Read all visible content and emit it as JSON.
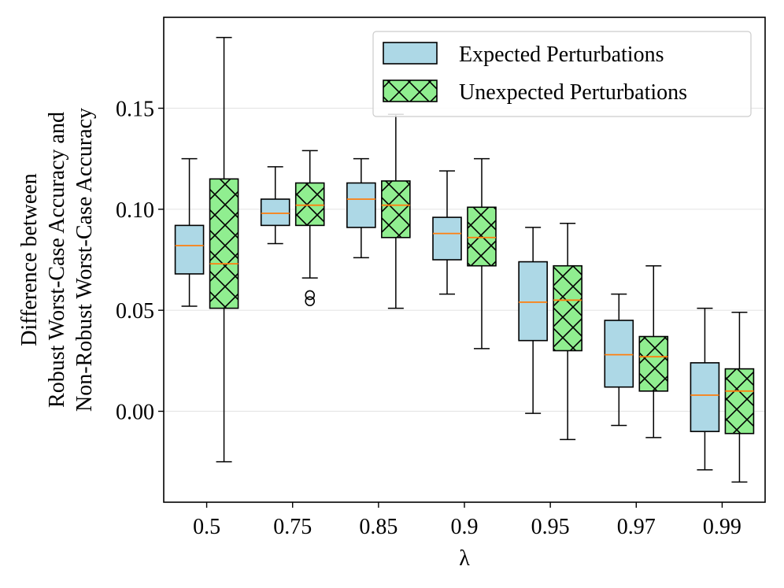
{
  "chart_data": {
    "type": "box",
    "title": "",
    "xlabel": "λ",
    "ylabel_lines": [
      "Difference between",
      "Robust Worst-Case Accuracy and",
      "Non-Robust Worst-Case Accuracy"
    ],
    "ylim": [
      -0.045,
      0.195
    ],
    "yticks": [
      0.0,
      0.05,
      0.1,
      0.15
    ],
    "ytick_labels": [
      "0.00",
      "0.05",
      "0.10",
      "0.15"
    ],
    "grid_y": true,
    "categories": [
      "0.5",
      "0.75",
      "0.85",
      "0.9",
      "0.95",
      "0.97",
      "0.99"
    ],
    "legend_position": "top-right",
    "colors": {
      "expected_fill": "#add8e6",
      "unexpected_fill": "#90ee90",
      "median": "#ff7f0e",
      "box_edge": "#000000",
      "grid": "#e6e6e6"
    },
    "series": [
      {
        "name": "Expected Perturbations",
        "hatch": "none",
        "boxes": [
          {
            "whislo": 0.052,
            "q1": 0.068,
            "med": 0.082,
            "q3": 0.092,
            "whishi": 0.125,
            "fliers": []
          },
          {
            "whislo": 0.083,
            "q1": 0.092,
            "med": 0.098,
            "q3": 0.105,
            "whishi": 0.121,
            "fliers": []
          },
          {
            "whislo": 0.076,
            "q1": 0.091,
            "med": 0.105,
            "q3": 0.113,
            "whishi": 0.125,
            "fliers": []
          },
          {
            "whislo": 0.058,
            "q1": 0.075,
            "med": 0.088,
            "q3": 0.096,
            "whishi": 0.119,
            "fliers": []
          },
          {
            "whislo": -0.001,
            "q1": 0.035,
            "med": 0.054,
            "q3": 0.074,
            "whishi": 0.091,
            "fliers": []
          },
          {
            "whislo": -0.007,
            "q1": 0.012,
            "med": 0.028,
            "q3": 0.045,
            "whishi": 0.058,
            "fliers": []
          },
          {
            "whislo": -0.029,
            "q1": -0.01,
            "med": 0.008,
            "q3": 0.024,
            "whishi": 0.051,
            "fliers": []
          }
        ]
      },
      {
        "name": "Unexpected Perturbations",
        "hatch": "crosshatch",
        "boxes": [
          {
            "whislo": -0.025,
            "q1": 0.051,
            "med": 0.073,
            "q3": 0.115,
            "whishi": 0.185,
            "fliers": []
          },
          {
            "whislo": 0.066,
            "q1": 0.092,
            "med": 0.102,
            "q3": 0.113,
            "whishi": 0.129,
            "fliers": [
              0.0545,
              0.0575
            ]
          },
          {
            "whislo": 0.051,
            "q1": 0.086,
            "med": 0.102,
            "q3": 0.114,
            "whishi": 0.147,
            "fliers": []
          },
          {
            "whislo": 0.031,
            "q1": 0.072,
            "med": 0.086,
            "q3": 0.101,
            "whishi": 0.125,
            "fliers": []
          },
          {
            "whislo": -0.014,
            "q1": 0.03,
            "med": 0.055,
            "q3": 0.072,
            "whishi": 0.093,
            "fliers": []
          },
          {
            "whislo": -0.013,
            "q1": 0.01,
            "med": 0.027,
            "q3": 0.037,
            "whishi": 0.072,
            "fliers": []
          },
          {
            "whislo": -0.035,
            "q1": -0.011,
            "med": 0.01,
            "q3": 0.021,
            "whishi": 0.049,
            "fliers": []
          }
        ]
      }
    ]
  }
}
